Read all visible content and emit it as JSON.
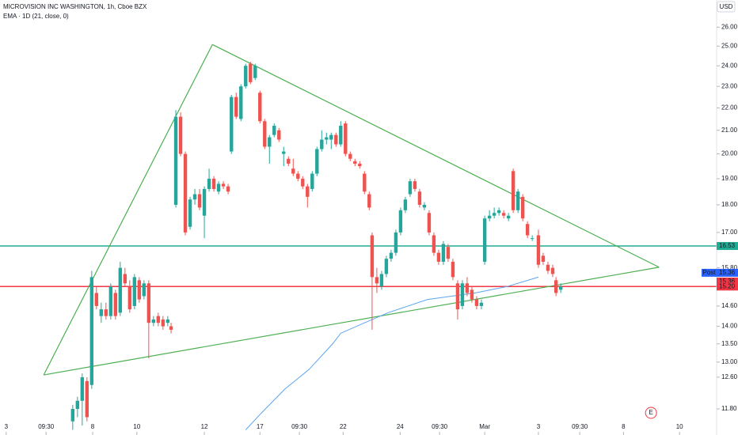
{
  "chart_data": {
    "type": "candlestick",
    "title": "MICROVISION INC WASHINGTON, 1h, Cboe BZX",
    "indicator_label": "EMA · 1D (21, close, 0)",
    "currency": "USD",
    "log_scale": true,
    "up_color": "#26a69a",
    "down_color": "#ef5350",
    "xlim": [
      0,
      150.8
    ],
    "ylim": [
      11.18,
      27.5
    ],
    "yticks": [
      {
        "value": 26,
        "label": "26.00"
      },
      {
        "value": 25,
        "label": "25.00"
      },
      {
        "value": 24,
        "label": "24.00"
      },
      {
        "value": 23,
        "label": "23.00"
      },
      {
        "value": 22,
        "label": "22.00"
      },
      {
        "value": 21,
        "label": "21.00"
      },
      {
        "value": 20,
        "label": "20.00"
      },
      {
        "value": 19,
        "label": "19.00"
      },
      {
        "value": 18,
        "label": "18.00"
      },
      {
        "value": 17,
        "label": "17.00"
      },
      {
        "value": 15.8,
        "label": "15.80"
      },
      {
        "value": 14.6,
        "label": "14.60"
      },
      {
        "value": 14,
        "label": "14.00"
      },
      {
        "value": 13.5,
        "label": "13.50"
      },
      {
        "value": 13,
        "label": "13.00"
      },
      {
        "value": 12.6,
        "label": "12.60"
      },
      {
        "value": 11.8,
        "label": "11.80"
      }
    ],
    "xticks": [
      {
        "value": 1.3,
        "label": "3"
      },
      {
        "value": 9.7,
        "label": "09:30"
      },
      {
        "value": 19.5,
        "label": "8"
      },
      {
        "value": 28.8,
        "label": "10"
      },
      {
        "value": 43,
        "label": "12"
      },
      {
        "value": 54.7,
        "label": "17"
      },
      {
        "value": 63,
        "label": "09:30"
      },
      {
        "value": 72.2,
        "label": "22"
      },
      {
        "value": 84.2,
        "label": "24"
      },
      {
        "value": 92.5,
        "label": "09:30"
      },
      {
        "value": 102,
        "label": "Mar"
      },
      {
        "value": 113.3,
        "label": "3"
      },
      {
        "value": 122,
        "label": "09:30"
      },
      {
        "value": 131.2,
        "label": "8"
      },
      {
        "value": 143,
        "label": "10"
      }
    ],
    "candles": [
      [
        15.3,
        11.5,
        11.9,
        11.3,
        11.8
      ],
      [
        16.3,
        11.8,
        12.1,
        11.6,
        12.0
      ],
      [
        17.3,
        12.0,
        12.7,
        11.4,
        12.6
      ],
      [
        18.3,
        12.5,
        12.6,
        11.5,
        11.6
      ],
      [
        19.3,
        12.4,
        15.7,
        12.3,
        15.5
      ],
      [
        20.3,
        15.0,
        15.2,
        14.5,
        14.6
      ],
      [
        21.3,
        14.3,
        14.7,
        14.1,
        14.5
      ],
      [
        22.3,
        14.5,
        14.7,
        14.2,
        14.3
      ],
      [
        23.3,
        14.3,
        15.3,
        14.2,
        15.2
      ],
      [
        24.3,
        15.0,
        15.1,
        14.2,
        14.3
      ],
      [
        25.3,
        14.4,
        16.0,
        14.3,
        15.8
      ],
      [
        26.3,
        15.6,
        15.8,
        15.2,
        15.3
      ],
      [
        27.3,
        15.2,
        15.4,
        14.4,
        14.5
      ],
      [
        28.3,
        14.6,
        15.6,
        14.5,
        15.5
      ],
      [
        29.3,
        15.4,
        15.5,
        14.7,
        14.8
      ],
      [
        30.3,
        14.9,
        15.4,
        14.8,
        15.3
      ],
      [
        31.3,
        15.3,
        15.4,
        13.1,
        14.1
      ],
      [
        32.3,
        14.1,
        14.3,
        14.0,
        14.2
      ],
      [
        33.3,
        14.3,
        14.4,
        14.0,
        14.1
      ],
      [
        34.3,
        14.2,
        14.3,
        13.9,
        14.0
      ],
      [
        35.3,
        14.1,
        14.3,
        14.0,
        14.2
      ],
      [
        36.0,
        14.0,
        14.1,
        13.8,
        13.9
      ],
      [
        37.0,
        18.0,
        21.9,
        17.9,
        21.6
      ],
      [
        38.0,
        21.6,
        21.8,
        19.9,
        20.0
      ],
      [
        39.0,
        20.0,
        20.1,
        16.9,
        17.0
      ],
      [
        40.0,
        17.2,
        18.3,
        17.1,
        18.2
      ],
      [
        41.0,
        18.2,
        18.6,
        18.0,
        18.4
      ],
      [
        42.0,
        18.4,
        18.6,
        17.8,
        17.9
      ],
      [
        43.0,
        17.6,
        18.7,
        16.8,
        18.6
      ],
      [
        44.0,
        18.6,
        19.4,
        18.5,
        19.0
      ],
      [
        45.0,
        19.0,
        19.1,
        18.5,
        18.6
      ],
      [
        46.0,
        18.5,
        18.9,
        18.4,
        18.8
      ],
      [
        47.0,
        18.8,
        18.9,
        18.6,
        18.7
      ],
      [
        48.0,
        18.7,
        18.8,
        18.4,
        18.5
      ],
      [
        48.7,
        20.1,
        22.6,
        20.0,
        22.5
      ],
      [
        49.7,
        22.5,
        22.7,
        21.5,
        21.6
      ],
      [
        50.7,
        21.5,
        23.1,
        21.4,
        23.0
      ],
      [
        51.7,
        23.0,
        24.1,
        22.9,
        24.0
      ],
      [
        52.7,
        24.1,
        24.2,
        23.1,
        23.2
      ],
      [
        53.7,
        23.4,
        24.1,
        23.3,
        24.0
      ],
      [
        54.7,
        22.7,
        22.8,
        21.3,
        21.4
      ],
      [
        55.7,
        21.4,
        21.5,
        20.2,
        20.3
      ],
      [
        56.7,
        20.3,
        20.8,
        19.6,
        20.7
      ],
      [
        57.7,
        20.8,
        21.3,
        20.7,
        21.2
      ],
      [
        58.7,
        21.0,
        21.1,
        20.5,
        20.6
      ],
      [
        59.7,
        20.0,
        20.3,
        19.5,
        20.1
      ],
      [
        60.7,
        19.8,
        19.9,
        19.5,
        19.6
      ],
      [
        61.7,
        19.4,
        19.8,
        19.1,
        19.2
      ],
      [
        62.7,
        19.2,
        19.3,
        18.9,
        19.0
      ],
      [
        63.7,
        19.0,
        19.1,
        18.6,
        18.7
      ],
      [
        64.7,
        18.7,
        18.8,
        17.9,
        18.3
      ],
      [
        65.7,
        18.6,
        19.3,
        18.5,
        19.2
      ],
      [
        66.7,
        19.2,
        20.3,
        19.1,
        20.2
      ],
      [
        67.7,
        20.2,
        21.0,
        20.1,
        20.6
      ],
      [
        68.7,
        20.6,
        20.9,
        20.4,
        20.7
      ],
      [
        69.7,
        20.6,
        20.9,
        20.2,
        20.8
      ],
      [
        70.7,
        20.8,
        20.9,
        20.3,
        20.4
      ],
      [
        71.7,
        20.4,
        21.4,
        20.3,
        21.2
      ],
      [
        72.7,
        21.3,
        21.4,
        19.9,
        20.0
      ],
      [
        73.7,
        20.0,
        20.1,
        19.7,
        19.8
      ],
      [
        74.7,
        19.7,
        19.8,
        19.5,
        19.6
      ],
      [
        75.7,
        19.6,
        19.7,
        19.4,
        19.5
      ],
      [
        76.7,
        19.2,
        19.3,
        18.4,
        18.5
      ],
      [
        77.7,
        18.4,
        18.5,
        17.8,
        17.9
      ],
      [
        78.3,
        16.9,
        17.0,
        13.9,
        15.5
      ],
      [
        79.3,
        15.5,
        15.8,
        15.0,
        15.3
      ],
      [
        80.3,
        15.2,
        15.7,
        15.1,
        15.6
      ],
      [
        81.3,
        15.6,
        16.2,
        15.5,
        16.1
      ],
      [
        82.3,
        16.1,
        16.4,
        16.0,
        16.3
      ],
      [
        83.3,
        16.3,
        17.1,
        16.2,
        17.0
      ],
      [
        84.3,
        17.0,
        17.9,
        16.9,
        17.8
      ],
      [
        85.3,
        17.8,
        18.3,
        17.7,
        18.2
      ],
      [
        86.3,
        18.4,
        19.0,
        18.3,
        18.9
      ],
      [
        87.3,
        18.9,
        19.0,
        18.5,
        18.6
      ],
      [
        88.3,
        18.5,
        18.6,
        17.9,
        18.0
      ],
      [
        89.3,
        17.9,
        18.1,
        17.8,
        18.0
      ],
      [
        90.3,
        17.7,
        17.8,
        16.9,
        17.0
      ],
      [
        91.3,
        16.9,
        17.0,
        16.2,
        16.3
      ],
      [
        92.3,
        16.3,
        16.4,
        15.9,
        16.0
      ],
      [
        93.3,
        16.0,
        16.7,
        15.9,
        16.6
      ],
      [
        94.3,
        16.5,
        16.6,
        16.0,
        16.1
      ],
      [
        95.3,
        16.0,
        16.1,
        15.4,
        15.5
      ],
      [
        96.3,
        15.3,
        15.4,
        14.2,
        14.5
      ],
      [
        97.3,
        14.6,
        15.4,
        14.5,
        15.3
      ],
      [
        98.3,
        15.3,
        15.5,
        14.9,
        15.0
      ],
      [
        99.3,
        15.1,
        15.2,
        14.7,
        14.8
      ],
      [
        100.3,
        14.8,
        14.9,
        14.5,
        14.6
      ],
      [
        101.3,
        14.6,
        14.8,
        14.5,
        14.7
      ],
      [
        102.0,
        16.0,
        17.6,
        15.9,
        17.5
      ],
      [
        103.0,
        17.5,
        17.8,
        17.4,
        17.6
      ],
      [
        104.0,
        17.6,
        17.9,
        17.5,
        17.7
      ],
      [
        105.0,
        17.7,
        17.9,
        17.6,
        17.8
      ],
      [
        106.0,
        17.7,
        17.8,
        17.5,
        17.6
      ],
      [
        107.0,
        17.5,
        17.7,
        17.4,
        17.6
      ],
      [
        108.0,
        19.3,
        19.4,
        17.7,
        17.8
      ],
      [
        109.0,
        17.8,
        18.6,
        17.7,
        18.5
      ],
      [
        110.0,
        18.3,
        18.4,
        17.4,
        17.5
      ],
      [
        111.0,
        17.3,
        17.4,
        16.8,
        16.9
      ],
      [
        112.0,
        16.8,
        16.9,
        16.7,
        16.8
      ],
      [
        113.3,
        16.9,
        17.1,
        15.8,
        15.9
      ],
      [
        114.3,
        16.2,
        16.3,
        15.9,
        16.0
      ],
      [
        115.3,
        15.9,
        16.0,
        15.6,
        15.7
      ],
      [
        116.3,
        15.8,
        15.9,
        15.5,
        15.6
      ],
      [
        117.0,
        15.4,
        15.5,
        14.9,
        15.0
      ],
      [
        118.0,
        15.1,
        15.3,
        15.0,
        15.2
      ]
    ],
    "ema": {
      "color": "#5aa5f0",
      "x": [
        51.7,
        55,
        60,
        65,
        70,
        71.7,
        76.7,
        81.7,
        90,
        100,
        106.7,
        113.3
      ],
      "values": [
        11.3,
        11.7,
        12.3,
        12.8,
        13.5,
        13.8,
        14.1,
        14.4,
        14.8,
        15.0,
        15.2,
        15.5
      ]
    },
    "trendlines": {
      "color": "#4caf50",
      "points": [
        [
          9.2,
          12.66
        ],
        [
          44.7,
          25.08
        ],
        [
          138.7,
          15.82
        ]
      ]
    },
    "hlines": [
      {
        "value": 16.53,
        "color": "#22ab94"
      },
      {
        "value": 15.2,
        "color": "#f23645"
      }
    ],
    "badges": [
      {
        "value": 16.53,
        "color": "#22ab94"
      },
      {
        "tag": "Post",
        "value": 15.36,
        "color": "#2962ff"
      },
      {
        "value": 15.36,
        "color": "#f23645"
      },
      {
        "value": 15.2,
        "label": "15.20",
        "color": "#f23645"
      }
    ],
    "earnings": {
      "label": "E",
      "x": 137
    }
  }
}
